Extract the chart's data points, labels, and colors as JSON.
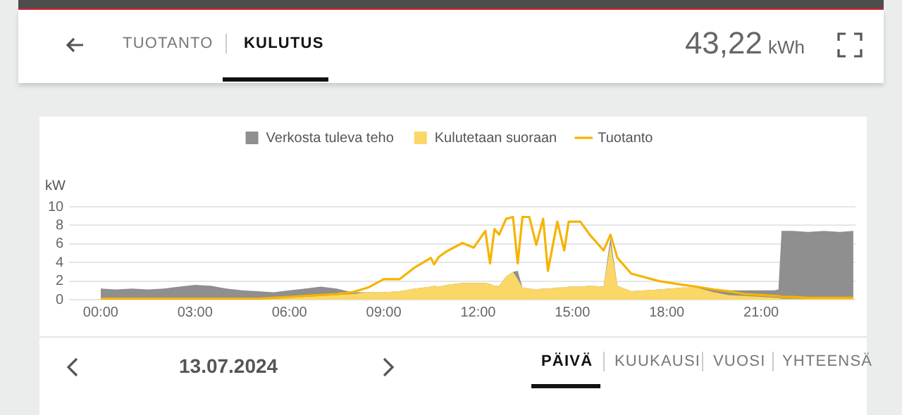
{
  "chart_data": {
    "type": "area",
    "ylabel": "kW",
    "stacked": true,
    "grid": "y",
    "legend": "top",
    "marker": "none",
    "x": [
      0,
      0.5,
      1,
      1.5,
      2,
      2.5,
      3,
      3.5,
      4,
      4.5,
      5,
      5.5,
      6,
      6.5,
      7,
      7.5,
      8,
      8.5,
      9,
      9.5,
      10,
      10.5,
      10.6,
      10.75,
      11,
      11.5,
      11.86,
      12.23,
      12.38,
      12.52,
      12.67,
      12.89,
      13.11,
      13.26,
      13.41,
      13.63,
      13.85,
      14.07,
      14.22,
      14.52,
      14.74,
      14.88,
      15.25,
      15.55,
      15.99,
      16.21,
      16.43,
      16.87,
      17.75,
      18.5,
      18.93,
      19.5,
      19.96,
      20.5,
      21,
      21.43,
      21.55,
      21.65,
      22,
      22.5,
      23,
      23.5,
      23.93
    ],
    "xlim": [
      -1,
      24
    ],
    "xticks": [
      {
        "value": 0,
        "label": "00:00"
      },
      {
        "value": 3,
        "label": "03:00"
      },
      {
        "value": 6,
        "label": "06:00"
      },
      {
        "value": 9,
        "label": "09:00"
      },
      {
        "value": 12,
        "label": "12:00"
      },
      {
        "value": 15,
        "label": "15:00"
      },
      {
        "value": 18,
        "label": "18:00"
      },
      {
        "value": 21,
        "label": "21:00"
      }
    ],
    "ylim": [
      0,
      10
    ],
    "yticks": [
      0,
      2,
      4,
      6,
      8,
      10
    ],
    "series": [
      {
        "name": "Kulutetaan suoraan",
        "color": "#fad766",
        "values": [
          0,
          0,
          0,
          0,
          0,
          0,
          0,
          0,
          0,
          0,
          0.1,
          0.1,
          0.2,
          0.3,
          0.4,
          0.5,
          0.6,
          0.8,
          0.8,
          0.9,
          1.2,
          1.4,
          1.5,
          1.4,
          1.6,
          1.8,
          1.8,
          1.8,
          1.7,
          1.5,
          1.5,
          2.5,
          3.0,
          2.2,
          1.3,
          1.2,
          1.1,
          1.2,
          1.2,
          1.3,
          1.3,
          1.4,
          1.4,
          1.5,
          1.4,
          6.0,
          1.5,
          0.9,
          1.1,
          1.3,
          1.3,
          0.8,
          0.5,
          0.4,
          0.3,
          0.2,
          0.2,
          0.1,
          0.1,
          0.1,
          0.1,
          0.1,
          0.1
        ]
      },
      {
        "name": "Verkosta tuleva teho",
        "color": "#8f8f8f",
        "values": [
          1.2,
          1.1,
          1.2,
          1.1,
          1.2,
          1.4,
          1.6,
          1.5,
          1.2,
          1.0,
          0.8,
          0.7,
          0.8,
          0.9,
          1.0,
          0.7,
          0.2,
          0,
          0,
          0,
          0,
          0,
          0,
          0,
          0,
          0,
          0,
          0,
          0,
          0,
          0,
          0,
          0,
          0.9,
          0,
          0,
          0,
          0,
          0,
          0,
          0,
          0,
          0,
          0,
          0,
          0.7,
          0,
          0,
          0,
          0,
          0,
          0.3,
          0.5,
          0.6,
          0.7,
          0.8,
          0.9,
          7.3,
          7.3,
          7.2,
          7.3,
          7.2,
          7.3
        ]
      },
      {
        "name": "Tuotanto",
        "type": "line",
        "color": "#f5b400",
        "values": [
          0.1,
          0.1,
          0.1,
          0.1,
          0.1,
          0.1,
          0.1,
          0.1,
          0.1,
          0.1,
          0.1,
          0.2,
          0.3,
          0.4,
          0.5,
          0.6,
          0.8,
          1.3,
          2.2,
          2.2,
          3.5,
          4.5,
          3.8,
          4.6,
          5.2,
          6.1,
          5.6,
          7.4,
          3.9,
          7.6,
          7,
          8.7,
          8.9,
          3.9,
          8.9,
          8.9,
          5.9,
          8.7,
          3.1,
          8.4,
          5.3,
          8.4,
          8.4,
          7,
          5.3,
          7,
          4.5,
          2.8,
          2,
          1.6,
          1.4,
          1.1,
          0.9,
          0.6,
          0.5,
          0.4,
          0.4,
          0.3,
          0.3,
          0.2,
          0.2,
          0.2,
          0.2
        ]
      }
    ],
    "annotations": [
      "TUOTANTO",
      "KULUTUS",
      "43,22",
      "kWh",
      "13.07.2024",
      "PÄIVÄ",
      "KUUKAUSI",
      "VUOSI",
      "YHTEENSÄ"
    ]
  }
}
